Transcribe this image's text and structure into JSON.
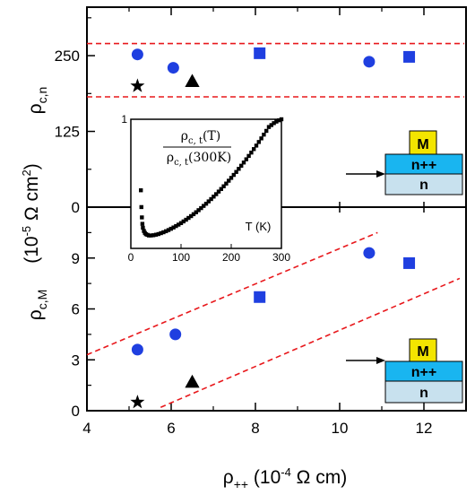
{
  "colors": {
    "marker_blue": "#1f3fe0",
    "dashed_red": "#e8181c",
    "inset_marker": "#000000",
    "layer_metal": "#f3e500",
    "layer_nplus": "#19b5f0",
    "layer_n": "#c8e1ee"
  },
  "labels": {
    "xlabel": "ρ++ (10⁻⁴ Ω  cm)",
    "ylabel_common": "(10⁻⁵ Ω cm²)",
    "top_ylabel": "ρc,n",
    "bottom_ylabel": "ρc,M",
    "inset_formula_num": "ρc, t(T)",
    "inset_formula_den": "ρc, t(300K)",
    "inset_xlabel": "T (K)",
    "layer_metal": "M",
    "layer_nplus": "n++",
    "layer_n": "n"
  },
  "chart_data": [
    {
      "type": "scatter",
      "name": "top-panel",
      "xlim": [
        4,
        13
      ],
      "ylim": [
        0,
        330
      ],
      "x_ticks": [
        4,
        6,
        8,
        10,
        12
      ],
      "y_ticks": [
        0,
        125,
        250
      ],
      "series": [
        {
          "marker": "circle",
          "color": "#1f3fe0",
          "points": [
            [
              5.2,
              252
            ],
            [
              6.05,
              230
            ],
            [
              10.7,
              240
            ]
          ]
        },
        {
          "marker": "square",
          "color": "#1f3fe0",
          "points": [
            [
              8.1,
              254
            ],
            [
              11.65,
              248
            ]
          ]
        },
        {
          "marker": "triangle",
          "color": "#000000",
          "points": [
            [
              6.5,
              208
            ]
          ]
        },
        {
          "marker": "star",
          "color": "#000000",
          "points": [
            [
              5.2,
              200
            ]
          ]
        }
      ],
      "reference_lines": [
        {
          "style": "dashed",
          "color": "#e8181c",
          "y": 270
        },
        {
          "style": "dashed",
          "color": "#e8181c",
          "y": 182
        }
      ]
    },
    {
      "type": "scatter",
      "name": "bottom-panel",
      "xlim": [
        4,
        13
      ],
      "ylim": [
        0,
        12
      ],
      "x_ticks": [
        4,
        6,
        8,
        10,
        12
      ],
      "y_ticks": [
        0,
        3,
        6,
        9
      ],
      "series": [
        {
          "marker": "circle",
          "color": "#1f3fe0",
          "points": [
            [
              5.2,
              3.6
            ],
            [
              6.1,
              4.5
            ],
            [
              10.7,
              9.3
            ]
          ]
        },
        {
          "marker": "square",
          "color": "#1f3fe0",
          "points": [
            [
              8.1,
              6.7
            ],
            [
              11.65,
              8.7
            ]
          ]
        },
        {
          "marker": "triangle",
          "color": "#000000",
          "points": [
            [
              6.5,
              1.7
            ]
          ]
        },
        {
          "marker": "star",
          "color": "#000000",
          "points": [
            [
              5.2,
              0.5
            ]
          ]
        }
      ],
      "reference_lines": [
        {
          "style": "dashed",
          "color": "#e8181c",
          "from": [
            4.0,
            3.3
          ],
          "to": [
            10.9,
            10.5
          ]
        },
        {
          "style": "dashed",
          "color": "#e8181c",
          "from": [
            5.75,
            0.2
          ],
          "to": [
            12.85,
            7.8
          ]
        }
      ]
    },
    {
      "type": "scatter",
      "name": "inset",
      "xlim": [
        0,
        300
      ],
      "ylim": [
        0,
        1
      ],
      "x_ticks": [
        0,
        100,
        200,
        300
      ],
      "y_ticks": [
        1
      ],
      "series": [
        {
          "marker": "square",
          "color": "#000000",
          "points": [
            [
              20,
              0.45
            ],
            [
              21,
              0.32
            ],
            [
              22,
              0.24
            ],
            [
              23,
              0.19
            ],
            [
              24,
              0.16
            ],
            [
              26,
              0.135
            ],
            [
              28,
              0.12
            ],
            [
              30,
              0.11
            ],
            [
              33,
              0.105
            ],
            [
              36,
              0.1
            ],
            [
              40,
              0.1
            ],
            [
              45,
              0.102
            ],
            [
              50,
              0.106
            ],
            [
              55,
              0.111
            ],
            [
              60,
              0.118
            ],
            [
              65,
              0.125
            ],
            [
              70,
              0.133
            ],
            [
              75,
              0.142
            ],
            [
              80,
              0.152
            ],
            [
              85,
              0.162
            ],
            [
              90,
              0.173
            ],
            [
              95,
              0.184
            ],
            [
              100,
              0.196
            ],
            [
              105,
              0.209
            ],
            [
              110,
              0.222
            ],
            [
              115,
              0.236
            ],
            [
              120,
              0.25
            ],
            [
              125,
              0.265
            ],
            [
              130,
              0.28
            ],
            [
              135,
              0.296
            ],
            [
              140,
              0.312
            ],
            [
              145,
              0.329
            ],
            [
              150,
              0.346
            ],
            [
              155,
              0.364
            ],
            [
              160,
              0.382
            ],
            [
              165,
              0.401
            ],
            [
              170,
              0.42
            ],
            [
              175,
              0.44
            ],
            [
              180,
              0.46
            ],
            [
              185,
              0.481
            ],
            [
              190,
              0.502
            ],
            [
              195,
              0.524
            ],
            [
              200,
              0.546
            ],
            [
              205,
              0.569
            ],
            [
              210,
              0.592
            ],
            [
              215,
              0.616
            ],
            [
              220,
              0.64
            ],
            [
              225,
              0.665
            ],
            [
              230,
              0.69
            ],
            [
              235,
              0.716
            ],
            [
              240,
              0.742
            ],
            [
              245,
              0.769
            ],
            [
              250,
              0.796
            ],
            [
              255,
              0.824
            ],
            [
              260,
              0.852
            ],
            [
              265,
              0.881
            ],
            [
              270,
              0.91
            ],
            [
              275,
              0.94
            ],
            [
              280,
              0.955
            ],
            [
              285,
              0.97
            ],
            [
              290,
              0.982
            ],
            [
              295,
              0.992
            ],
            [
              300,
              1.0
            ]
          ]
        }
      ]
    }
  ]
}
